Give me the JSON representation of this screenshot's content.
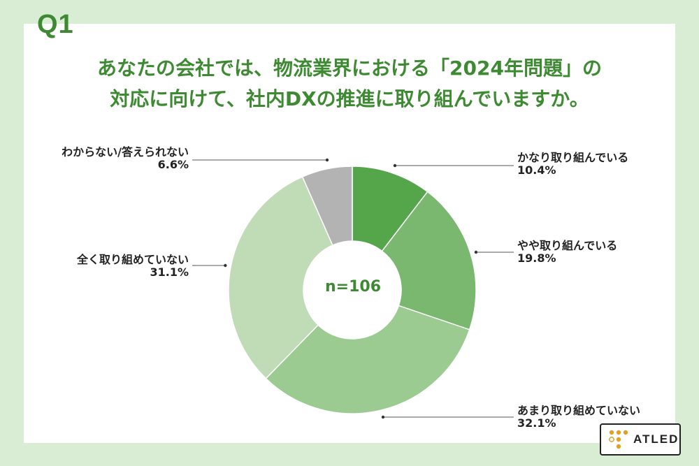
{
  "question_label": "Q1",
  "title_line1": "あなたの会社では、物流業界における「2024年問題」の",
  "title_line2": "対応に向けて、社内DXの推進に取り組んでいますか。",
  "center_label": "n=106",
  "logo_text": "ATLED",
  "chart_data": {
    "type": "pie",
    "donut": true,
    "start_angle": "top",
    "direction": "clockwise",
    "n": 106,
    "slices": [
      {
        "label": "かなり取り組んでいる",
        "value": 10.4,
        "value_label": "10.4%",
        "color": "#55a64b"
      },
      {
        "label": "やや取り組んでいる",
        "value": 19.8,
        "value_label": "19.8%",
        "color": "#79b86e"
      },
      {
        "label": "あまり取り組めていない",
        "value": 32.1,
        "value_label": "32.1%",
        "color": "#9ccb92"
      },
      {
        "label": "全く取り組めていない",
        "value": 31.1,
        "value_label": "31.1%",
        "color": "#bfdcb6"
      },
      {
        "label": "わからない/答えられない",
        "value": 6.6,
        "value_label": "6.6%",
        "color": "#b3b3b3"
      }
    ]
  },
  "colors": {
    "background": "#d9ecd4",
    "accent": "#3e8a33"
  }
}
